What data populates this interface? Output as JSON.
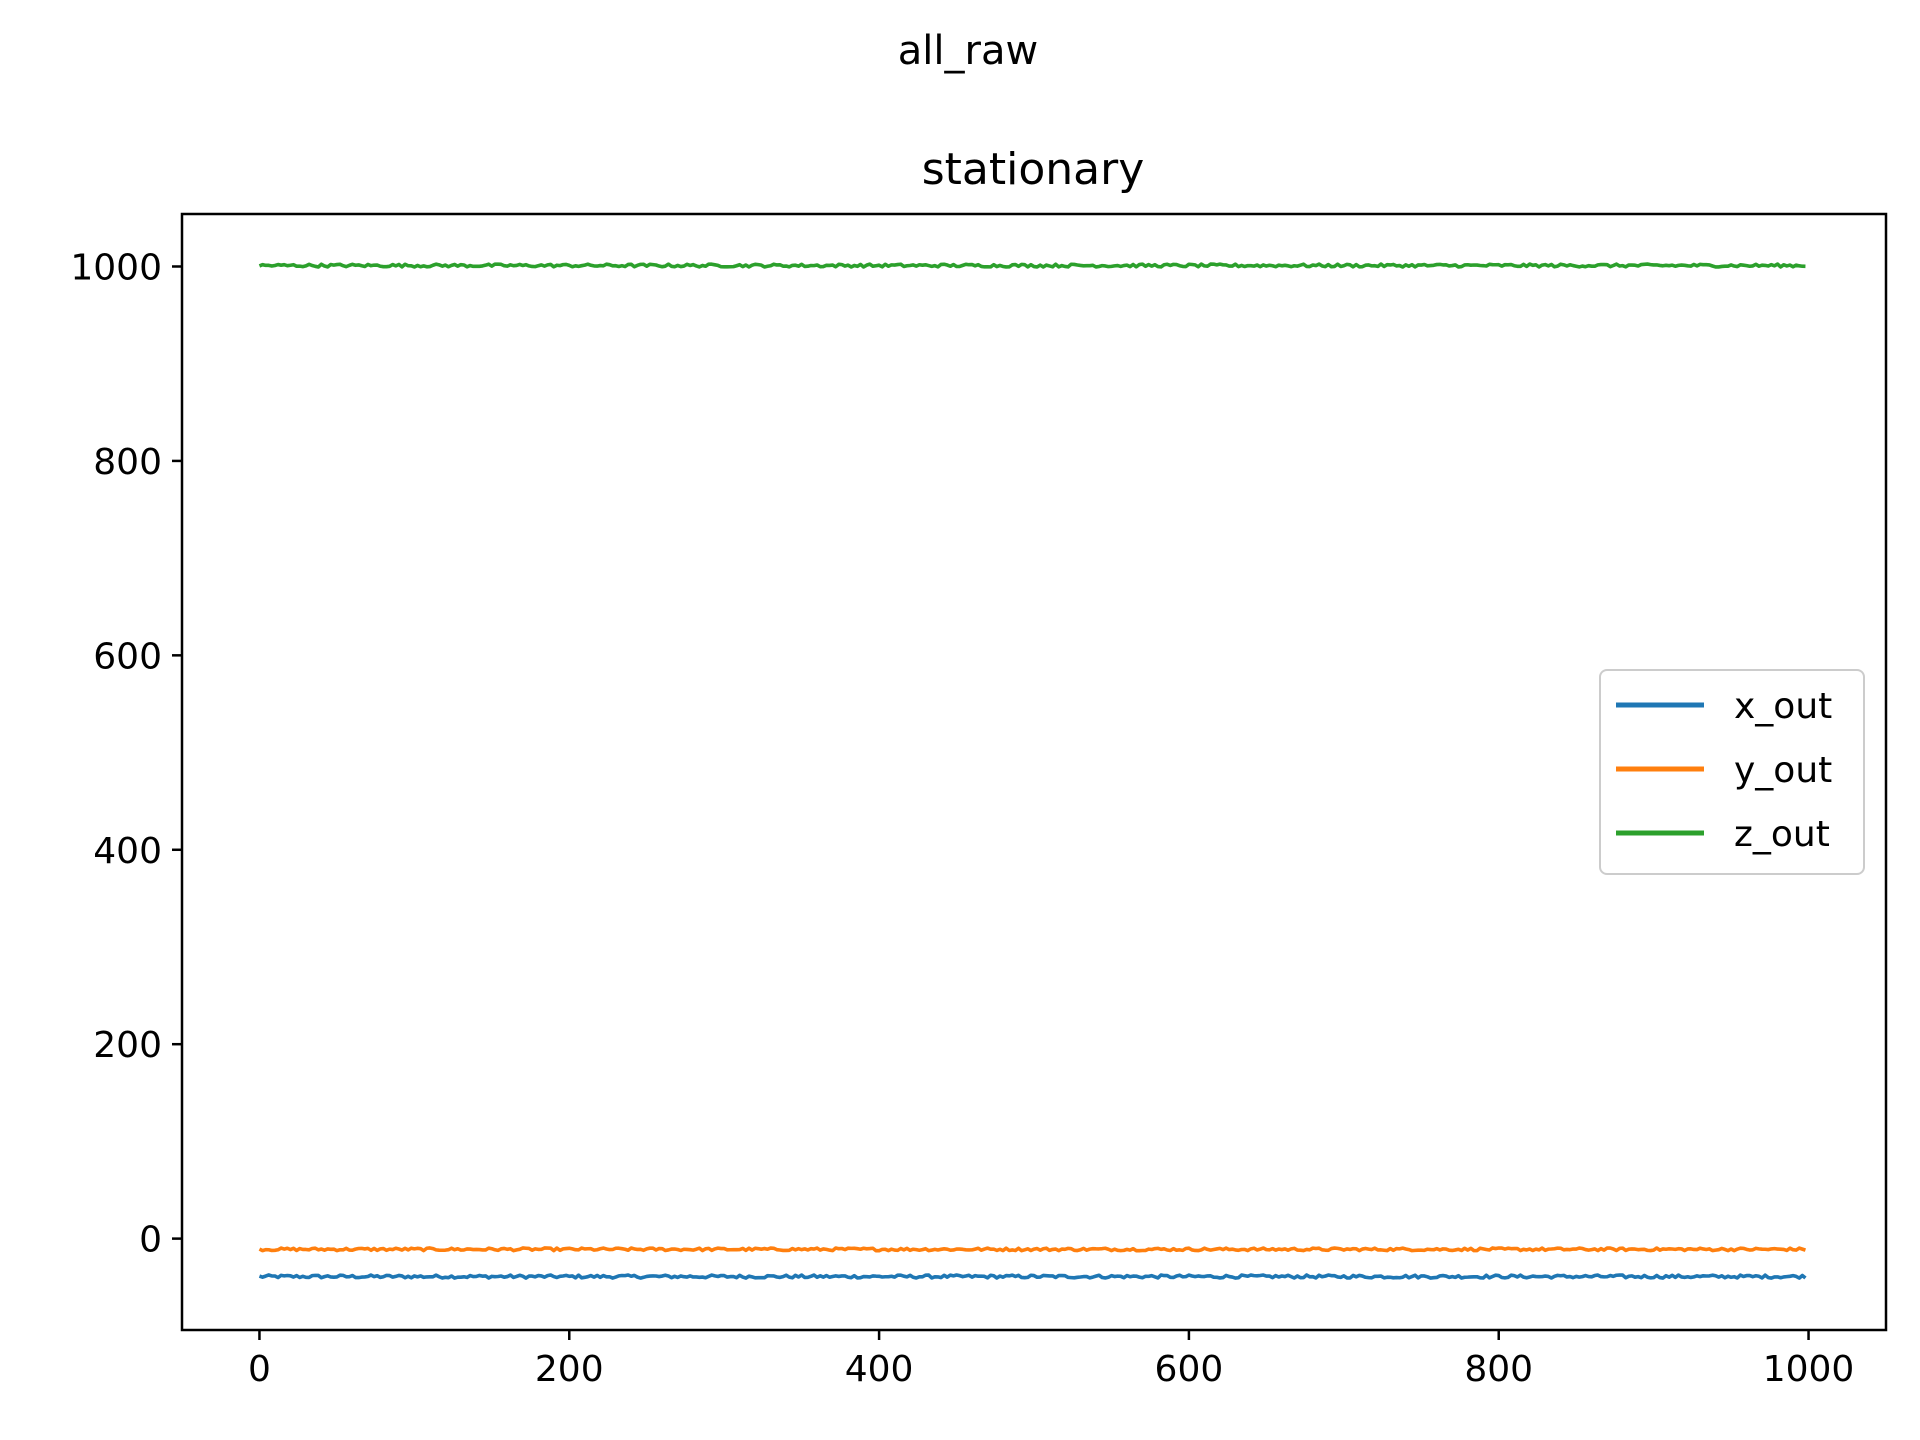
{
  "suptitle": "all_raw",
  "chart_data": {
    "type": "line",
    "title": "stationary",
    "xlabel": "",
    "ylabel": "",
    "xlim": [
      -50,
      1050
    ],
    "ylim": [
      -94,
      1054
    ],
    "xticks": [
      0,
      200,
      400,
      600,
      800,
      1000
    ],
    "yticks": [
      0,
      200,
      400,
      600,
      800,
      1000
    ],
    "grid": false,
    "legend_position": "center-right",
    "x_range": [
      0,
      999
    ],
    "series": [
      {
        "name": "x_out",
        "color": "#1f77b4",
        "level": -39,
        "noise": 1.6
      },
      {
        "name": "y_out",
        "color": "#ff7f0e",
        "level": -11,
        "noise": 1.4
      },
      {
        "name": "z_out",
        "color": "#2ca02c",
        "level": 1001,
        "noise": 1.5
      }
    ]
  }
}
